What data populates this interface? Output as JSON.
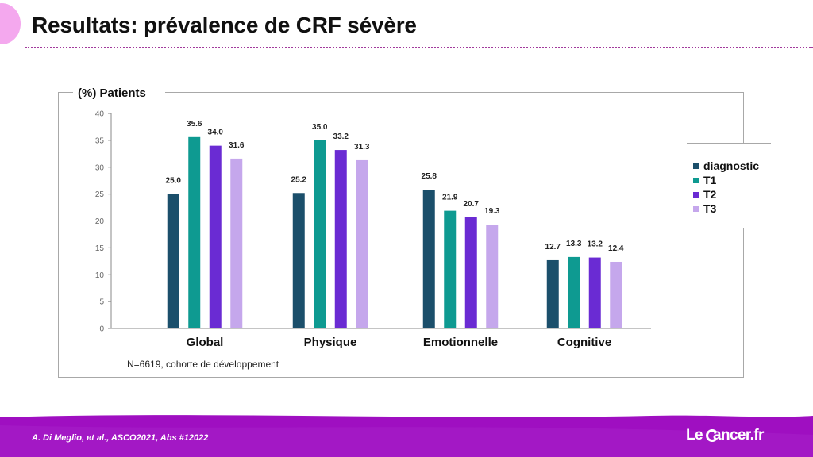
{
  "slide": {
    "title": "Resultats: prévalence de CRF sévère",
    "citation": "A. Di Meglio, et al.,  ASCO2021, Abs #12022",
    "logo": {
      "prefix": "Le ",
      "suffix": "ancer.fr"
    },
    "colors": {
      "accent": "#a23a9c",
      "footer": "#9f0fc1",
      "footer_light": "#f4a8ee"
    }
  },
  "chart_data": {
    "type": "bar",
    "ylabel": "(%) Patients",
    "ylim": [
      0,
      40
    ],
    "yticks": [
      0,
      5,
      10,
      15,
      20,
      25,
      30,
      35,
      40
    ],
    "categories": [
      "Global",
      "Physique",
      "Emotionnelle",
      "Cognitive"
    ],
    "series": [
      {
        "name": "diagnostic",
        "color": "#1b4f6b",
        "values": [
          25.0,
          25.2,
          25.8,
          12.7
        ],
        "labels": [
          "25.0",
          "25.2",
          "25.8",
          "12.7"
        ]
      },
      {
        "name": "T1",
        "color": "#0e9a91",
        "values": [
          35.6,
          35.0,
          21.9,
          13.3
        ],
        "labels": [
          "35.6",
          "35.0",
          "21.9",
          "13.3"
        ]
      },
      {
        "name": "T2",
        "color": "#6a2bd3",
        "values": [
          34.0,
          33.2,
          20.7,
          13.2
        ],
        "labels": [
          "34.0",
          "33.2",
          "20.7",
          "13.2"
        ]
      },
      {
        "name": "T3",
        "color": "#c5a7ec",
        "values": [
          31.6,
          31.3,
          19.3,
          12.4
        ],
        "labels": [
          "31.6",
          "31.3",
          "19.3",
          "12.4"
        ]
      }
    ],
    "annotation": "N=6619, cohorte de développement",
    "legend": "right",
    "grid": false
  }
}
